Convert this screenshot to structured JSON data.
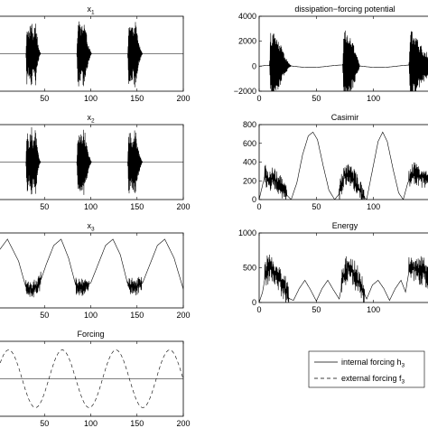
{
  "chart_data": [
    {
      "type": "line",
      "title": "x1",
      "title_sub": "1",
      "xlim": [
        0,
        200
      ],
      "xticks": [
        50,
        100,
        150,
        200
      ],
      "ylim": [
        -1,
        1
      ],
      "yticks": [],
      "series": [
        {
          "style": "solid",
          "baseline": 0,
          "envelope": [
            [
              0,
              0
            ],
            [
              30,
              0
            ],
            [
              31,
              0.9
            ],
            [
              33,
              0.6
            ],
            [
              36,
              0.95
            ],
            [
              38,
              0.5
            ],
            [
              40,
              0.9
            ],
            [
              43,
              0.3
            ],
            [
              45,
              0.05
            ],
            [
              46,
              0
            ],
            [
              85,
              0
            ],
            [
              86,
              0.9
            ],
            [
              90,
              0.8
            ],
            [
              93,
              0.9
            ],
            [
              97,
              0.3
            ],
            [
              100,
              0.05
            ],
            [
              101,
              0
            ],
            [
              140,
              0
            ],
            [
              141,
              0.9
            ],
            [
              145,
              0.7
            ],
            [
              148,
              0.95
            ],
            [
              152,
              0.3
            ],
            [
              155,
              0.05
            ],
            [
              156,
              0
            ],
            [
              200,
              0
            ]
          ]
        }
      ]
    },
    {
      "type": "line",
      "title": "dissipation−forcing potential",
      "xlim": [
        0,
        150
      ],
      "xticks": [
        0,
        50,
        100
      ],
      "ylim": [
        -2000,
        4000
      ],
      "yticks": [
        -2000,
        0,
        2000,
        4000
      ],
      "series": [
        {
          "style": "solid",
          "baseline": 0,
          "wave_amplitude": 100,
          "wave_period": 60,
          "envelope": [
            [
              0,
              0
            ],
            [
              9,
              0
            ],
            [
              10,
              2800
            ],
            [
              14,
              2500
            ],
            [
              18,
              1800
            ],
            [
              22,
              900
            ],
            [
              26,
              200
            ],
            [
              28,
              0
            ],
            [
              73,
              0
            ],
            [
              74,
              2900
            ],
            [
              78,
              2700
            ],
            [
              82,
              1800
            ],
            [
              86,
              800
            ],
            [
              88,
              0
            ],
            [
              131,
              0
            ],
            [
              132,
              2800
            ],
            [
              136,
              2600
            ],
            [
              140,
              1800
            ],
            [
              145,
              1200
            ],
            [
              150,
              900
            ]
          ]
        }
      ]
    },
    {
      "type": "line",
      "title": "x2",
      "title_sub": "2",
      "xlim": [
        0,
        200
      ],
      "xticks": [
        50,
        100,
        150,
        200
      ],
      "ylim": [
        -1,
        1
      ],
      "yticks": [],
      "series": [
        {
          "style": "solid",
          "baseline": 0,
          "envelope": [
            [
              0,
              0
            ],
            [
              30,
              0
            ],
            [
              31,
              0.9
            ],
            [
              33,
              0.6
            ],
            [
              36,
              0.95
            ],
            [
              38,
              0.5
            ],
            [
              40,
              0.9
            ],
            [
              43,
              0.3
            ],
            [
              45,
              0.05
            ],
            [
              46,
              0
            ],
            [
              85,
              0
            ],
            [
              86,
              0.9
            ],
            [
              90,
              0.8
            ],
            [
              93,
              0.9
            ],
            [
              97,
              0.3
            ],
            [
              100,
              0.05
            ],
            [
              101,
              0
            ],
            [
              140,
              0
            ],
            [
              141,
              0.9
            ],
            [
              145,
              0.7
            ],
            [
              148,
              0.95
            ],
            [
              152,
              0.3
            ],
            [
              155,
              0.05
            ],
            [
              156,
              0
            ],
            [
              200,
              0
            ]
          ]
        }
      ]
    },
    {
      "type": "line",
      "title": "Casimir",
      "xlim": [
        0,
        150
      ],
      "xticks": [
        0,
        50,
        100
      ],
      "ylim": [
        0,
        800
      ],
      "yticks": [
        0,
        200,
        400,
        600,
        800
      ],
      "series": [
        {
          "style": "solid",
          "smooth": [
            [
              0,
              0
            ],
            [
              5,
              260
            ],
            [
              8,
              200
            ],
            [
              12,
              230
            ],
            [
              16,
              180
            ],
            [
              20,
              120
            ],
            [
              24,
              50
            ],
            [
              28,
              0
            ],
            [
              33,
              180
            ],
            [
              38,
              480
            ],
            [
              43,
              680
            ],
            [
              47,
              720
            ],
            [
              51,
              640
            ],
            [
              56,
              360
            ],
            [
              61,
              100
            ],
            [
              66,
              0
            ],
            [
              70,
              60
            ],
            [
              74,
              250
            ],
            [
              78,
              280
            ],
            [
              82,
              230
            ],
            [
              86,
              150
            ],
            [
              90,
              50
            ],
            [
              94,
              0
            ],
            [
              98,
              250
            ],
            [
              104,
              620
            ],
            [
              108,
              720
            ],
            [
              112,
              620
            ],
            [
              117,
              330
            ],
            [
              122,
              70
            ],
            [
              126,
              0
            ],
            [
              130,
              180
            ],
            [
              135,
              280
            ],
            [
              140,
              260
            ],
            [
              145,
              220
            ],
            [
              150,
              200
            ]
          ],
          "noise_spans": [
            [
              5,
              24,
              120
            ],
            [
              70,
              92,
              120
            ],
            [
              131,
              150,
              120
            ]
          ]
        }
      ]
    },
    {
      "type": "line",
      "title": "x3",
      "title_sub": "3",
      "xlim": [
        0,
        200
      ],
      "xticks": [
        50,
        100,
        150,
        200
      ],
      "ylim": [
        -1.2,
        1.2
      ],
      "yticks": [],
      "series": [
        {
          "style": "solid",
          "smooth": [
            [
              0,
              0.6
            ],
            [
              10,
              1.0
            ],
            [
              22,
              0.3
            ],
            [
              30,
              -0.55
            ],
            [
              38,
              -0.6
            ],
            [
              45,
              -0.4
            ],
            [
              52,
              0.2
            ],
            [
              60,
              0.8
            ],
            [
              68,
              1.0
            ],
            [
              76,
              0.4
            ],
            [
              84,
              -0.5
            ],
            [
              92,
              -0.55
            ],
            [
              100,
              -0.4
            ],
            [
              108,
              0.2
            ],
            [
              116,
              0.8
            ],
            [
              124,
              1.0
            ],
            [
              132,
              0.5
            ],
            [
              140,
              -0.45
            ],
            [
              148,
              -0.55
            ],
            [
              156,
              -0.4
            ],
            [
              164,
              0.2
            ],
            [
              172,
              0.8
            ],
            [
              180,
              1.0
            ],
            [
              190,
              0.4
            ],
            [
              200,
              -0.6
            ]
          ],
          "noise_spans": [
            [
              30,
              46,
              0.28
            ],
            [
              84,
              98,
              0.28
            ],
            [
              140,
              155,
              0.28
            ]
          ]
        }
      ]
    },
    {
      "type": "line",
      "title": "Energy",
      "xlim": [
        0,
        150
      ],
      "xticks": [
        0,
        50,
        100
      ],
      "ylim": [
        0,
        1000
      ],
      "yticks": [
        0,
        500,
        1000
      ],
      "series": [
        {
          "style": "solid",
          "smooth": [
            [
              0,
              0
            ],
            [
              3,
              150
            ],
            [
              6,
              450
            ],
            [
              10,
              480
            ],
            [
              14,
              440
            ],
            [
              18,
              330
            ],
            [
              22,
              200
            ],
            [
              26,
              60
            ],
            [
              30,
              30
            ],
            [
              35,
              200
            ],
            [
              40,
              320
            ],
            [
              45,
              180
            ],
            [
              50,
              20
            ],
            [
              55,
              200
            ],
            [
              60,
              320
            ],
            [
              65,
              180
            ],
            [
              70,
              50
            ],
            [
              74,
              400
            ],
            [
              78,
              520
            ],
            [
              82,
              440
            ],
            [
              86,
              330
            ],
            [
              90,
              200
            ],
            [
              94,
              50
            ],
            [
              99,
              250
            ],
            [
              104,
              320
            ],
            [
              109,
              200
            ],
            [
              114,
              30
            ],
            [
              119,
              200
            ],
            [
              124,
              320
            ],
            [
              128,
              150
            ],
            [
              131,
              450
            ],
            [
              136,
              500
            ],
            [
              141,
              450
            ],
            [
              146,
              420
            ],
            [
              150,
              400
            ]
          ],
          "noise_spans": [
            [
              5,
              26,
              220
            ],
            [
              72,
              92,
              220
            ],
            [
              131,
              150,
              220
            ]
          ]
        }
      ]
    },
    {
      "type": "line",
      "title": "Forcing",
      "xlim": [
        0,
        200
      ],
      "xticks": [
        50,
        100,
        150,
        200
      ],
      "ylim": [
        -1.3,
        1.3
      ],
      "yticks": [],
      "series": [
        {
          "name": "internal forcing h3",
          "style": "solid",
          "constant": 0
        },
        {
          "name": "external forcing f3",
          "style": "dashed",
          "amplitude": 1,
          "period": 58,
          "phase": 0.35
        }
      ]
    }
  ],
  "legend": {
    "entries": [
      {
        "text": "internal forcing h",
        "sub": "3",
        "style": "solid"
      },
      {
        "text": "external forcing f",
        "sub": "3",
        "style": "dashed"
      }
    ]
  }
}
